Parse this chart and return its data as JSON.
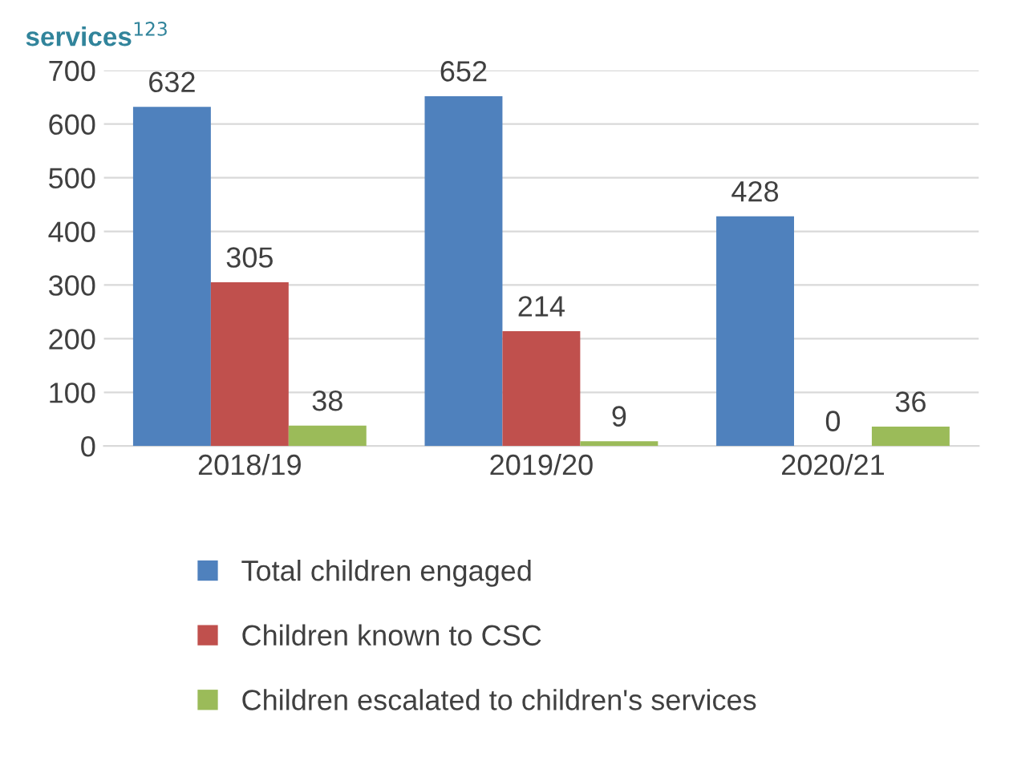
{
  "chart_data": {
    "type": "bar",
    "title": "services$^{123}$",
    "categories": [
      "2018/19",
      "2019/20",
      "2020/21"
    ],
    "series": [
      {
        "name": "Total children engaged",
        "color": "#4f81bd",
        "values": [
          632,
          652,
          428
        ]
      },
      {
        "name": "Children known to CSC",
        "color": "#c0504d",
        "values": [
          305,
          214,
          0
        ]
      },
      {
        "name": "Children escalated to children's services",
        "color": "#9bbb59",
        "values": [
          38,
          9,
          36
        ]
      }
    ],
    "ylim": [
      0,
      700
    ],
    "yticks": [
      0,
      100,
      200,
      300,
      400,
      500,
      600,
      700
    ],
    "grid": "y",
    "legend": "bottom",
    "data_labels": true
  }
}
